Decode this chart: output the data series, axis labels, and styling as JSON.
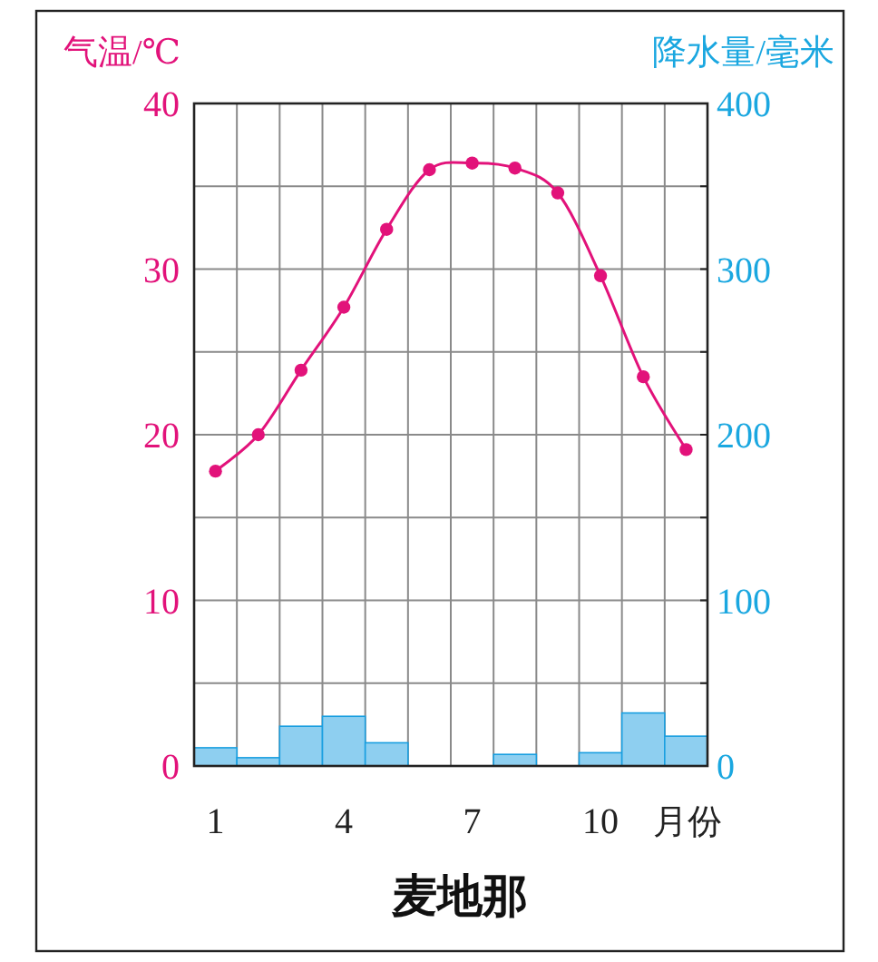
{
  "chart_data": {
    "type": "bar",
    "title": "麦地那",
    "xlabel": "月份",
    "ylabel": "气温/℃",
    "y2label": "降水量/毫米",
    "categories": [
      "1",
      null,
      null,
      "4",
      null,
      null,
      "7",
      null,
      null,
      "10",
      null,
      null
    ],
    "series": [
      {
        "type": "bar",
        "axis": "y2",
        "color": "#8ecff0",
        "values": [
          11,
          5,
          24,
          30,
          14,
          0,
          0,
          7,
          0,
          8,
          32,
          18
        ]
      },
      {
        "type": "line",
        "axis": "y",
        "color": "#e2127a",
        "values": [
          17.8,
          20.0,
          23.9,
          27.7,
          32.4,
          36.0,
          36.4,
          36.1,
          34.6,
          29.6,
          23.5,
          19.1
        ]
      }
    ],
    "ylim": [
      0,
      40
    ],
    "yticks": [
      0,
      {
        "value": 5,
        "label": null
      },
      10,
      {
        "value": 15,
        "label": null
      },
      20,
      {
        "value": 25,
        "label": null
      },
      30,
      {
        "value": 35,
        "label": null
      },
      40
    ],
    "y2lim": [
      0,
      400
    ],
    "y2ticks": [
      0,
      {
        "value": 50,
        "label": null
      },
      100,
      {
        "value": 150,
        "label": null
      },
      200,
      {
        "value": 250,
        "label": null
      },
      300,
      {
        "value": 350,
        "label": null
      },
      400
    ],
    "grid": true,
    "marker": "circle"
  }
}
